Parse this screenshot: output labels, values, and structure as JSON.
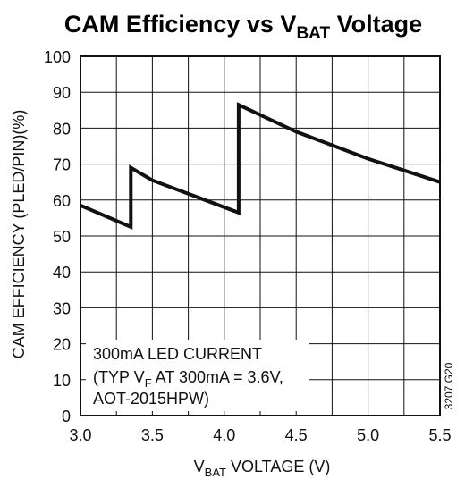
{
  "chart_data": {
    "type": "line",
    "title": "CAM Efficiency vs V",
    "title_sub": "BAT",
    "title_suffix": " Voltage",
    "xlabel_prefix": "V",
    "xlabel_sub": "BAT",
    "xlabel_suffix": " VOLTAGE (V)",
    "ylabel": "CAM EFFICIENCY (PLED/PIN)(%)",
    "xlim": [
      3.0,
      5.5
    ],
    "ylim": [
      0,
      100
    ],
    "xticks": [
      "3.0",
      "3.5",
      "4.0",
      "4.5",
      "5.0",
      "5.5"
    ],
    "yticks": [
      "0",
      "10",
      "20",
      "30",
      "40",
      "50",
      "60",
      "70",
      "80",
      "90",
      "100"
    ],
    "xtick_values": [
      3.0,
      3.5,
      4.0,
      4.5,
      5.0,
      5.5
    ],
    "ytick_values": [
      0,
      10,
      20,
      30,
      40,
      50,
      60,
      70,
      80,
      90,
      100
    ],
    "x_minor_grid": [
      3.25,
      3.75,
      4.25,
      4.75,
      5.25
    ],
    "grid": true,
    "series": [
      {
        "x": [
          3.0,
          3.35,
          3.35,
          3.5,
          4.1,
          4.1,
          4.5,
          5.0,
          5.5
        ],
        "y": [
          58.5,
          52.5,
          69,
          65.5,
          56.5,
          86.5,
          79,
          71.5,
          65
        ]
      }
    ],
    "annotation": {
      "line1": "300mA LED CURRENT",
      "line2_prefix": "(TYP V",
      "line2_sub": "F",
      "line2_suffix": " AT 300mA = 3.6V,",
      "line3": "AOT-2015HPW)"
    },
    "code": "3207 G20"
  }
}
